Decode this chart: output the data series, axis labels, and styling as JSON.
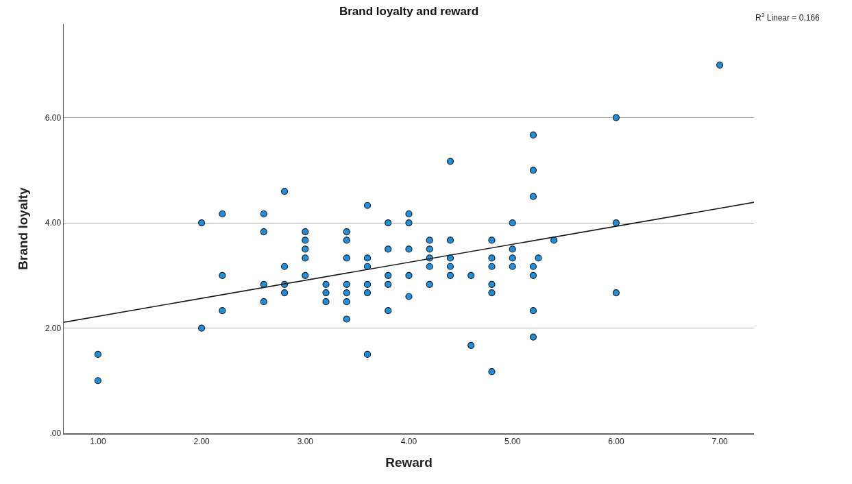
{
  "chart_data": {
    "type": "scatter",
    "title": "Brand loyalty and reward",
    "xlabel": "Reward",
    "ylabel": "Brand loyalty",
    "annotations": [
      "R$^{2}$ Linear = 0.166"
    ],
    "xlim": [
      0.67,
      7.33
    ],
    "ylim": [
      0,
      7.78
    ],
    "xticks": [
      {
        "value": 1,
        "label": "1.00"
      },
      {
        "value": 2,
        "label": "2.00"
      },
      {
        "value": 3,
        "label": "3.00"
      },
      {
        "value": 4,
        "label": "4.00"
      },
      {
        "value": 5,
        "label": "5.00"
      },
      {
        "value": 6,
        "label": "6.00"
      },
      {
        "value": 7,
        "label": "7.00"
      }
    ],
    "yticks": [
      {
        "value": 0,
        "label": ".00"
      },
      {
        "value": 2,
        "label": "2.00"
      },
      {
        "value": 4,
        "label": "4.00"
      },
      {
        "value": 6,
        "label": "6.00"
      }
    ],
    "grid": "y",
    "series": [
      {
        "marker": "circle",
        "color": "#1e8fdf",
        "x": [
          1,
          1,
          2,
          2,
          2.2,
          2.2,
          2.2,
          2.6,
          2.6,
          2.6,
          2.6,
          2.8,
          2.8,
          2.8,
          2.8,
          3,
          3,
          3,
          3,
          3,
          3.2,
          3.2,
          3.2,
          3.4,
          3.4,
          3.4,
          3.4,
          3.4,
          3.4,
          3.4,
          3.6,
          3.6,
          3.6,
          3.6,
          3.6,
          3.6,
          3.8,
          3.8,
          3.8,
          3.8,
          3.8,
          4,
          4,
          4,
          4,
          4,
          4.2,
          4.2,
          4.2,
          4.2,
          4.2,
          4.4,
          4.4,
          4.4,
          4.4,
          4.4,
          4.6,
          4.6,
          4.8,
          4.8,
          4.8,
          4.8,
          4.8,
          4.8,
          5,
          5,
          5,
          5,
          5.2,
          5.2,
          5.2,
          5.2,
          5.2,
          5.2,
          5.2,
          5.25,
          5.4,
          6,
          6,
          6,
          7
        ],
        "values": [
          1.5,
          1,
          4,
          2,
          4.17,
          3,
          2.33,
          4.17,
          3.83,
          2.83,
          2.5,
          4.6,
          3.17,
          2.83,
          2.67,
          3.83,
          3.67,
          3.5,
          3.33,
          3,
          2.83,
          2.67,
          2.5,
          3.83,
          3.67,
          3.33,
          2.83,
          2.67,
          2.5,
          2.17,
          4.33,
          3.33,
          3.17,
          2.83,
          2.67,
          1.5,
          4,
          3.5,
          3,
          2.83,
          2.33,
          4.17,
          4,
          3.5,
          3,
          2.6,
          3.67,
          3.5,
          3.33,
          3.17,
          2.83,
          5.17,
          3.67,
          3.33,
          3.17,
          3,
          3,
          1.67,
          3.67,
          3.33,
          3.17,
          2.83,
          2.67,
          1.17,
          4,
          3.5,
          3.33,
          3.17,
          5.67,
          5,
          4.5,
          3.17,
          3,
          2.33,
          1.83,
          3.33,
          3.67,
          6,
          4,
          2.67,
          7
        ]
      },
      {
        "type": "line",
        "color": "#1a1a1a",
        "line_style": "solid",
        "x": [
          0.67,
          7.33
        ],
        "values": [
          2.11,
          4.39
        ]
      }
    ]
  }
}
